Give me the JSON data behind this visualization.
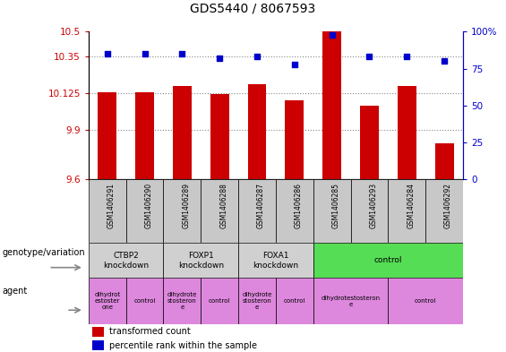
{
  "title": "GDS5440 / 8067593",
  "samples": [
    "GSM1406291",
    "GSM1406290",
    "GSM1406289",
    "GSM1406288",
    "GSM1406287",
    "GSM1406286",
    "GSM1406285",
    "GSM1406293",
    "GSM1406284",
    "GSM1406292"
  ],
  "transformed_count": [
    10.13,
    10.13,
    10.17,
    10.12,
    10.18,
    10.08,
    10.5,
    10.05,
    10.17,
    9.82
  ],
  "percentile_rank": [
    85,
    85,
    85,
    82,
    83,
    78,
    98,
    83,
    83,
    80
  ],
  "ylim_left": [
    9.6,
    10.5
  ],
  "ylim_right": [
    0,
    100
  ],
  "yticks_left": [
    9.6,
    9.9,
    10.125,
    10.35,
    10.5
  ],
  "ytick_labels_left": [
    "9.6",
    "9.9",
    "10.125",
    "10.35",
    "10.5"
  ],
  "yticks_right": [
    0,
    25,
    50,
    75,
    100
  ],
  "ytick_labels_right": [
    "0",
    "25",
    "50",
    "75",
    "100%"
  ],
  "bar_color": "#cc0000",
  "dot_color": "#0000cc",
  "bar_bottom": 9.6,
  "genotype_variation": [
    {
      "label": "CTBP2\nknockdown",
      "start": 0,
      "end": 2,
      "color": "#d0d0d0"
    },
    {
      "label": "FOXP1\nknockdown",
      "start": 2,
      "end": 4,
      "color": "#d0d0d0"
    },
    {
      "label": "FOXA1\nknockdown",
      "start": 4,
      "end": 6,
      "color": "#d0d0d0"
    },
    {
      "label": "control",
      "start": 6,
      "end": 10,
      "color": "#55dd55"
    }
  ],
  "agent": [
    {
      "label": "dihydrot\nestoster\none",
      "start": 0,
      "end": 1,
      "color": "#dd88dd"
    },
    {
      "label": "control",
      "start": 1,
      "end": 2,
      "color": "#dd88dd"
    },
    {
      "label": "dihydrote\nstosteron\ne",
      "start": 2,
      "end": 3,
      "color": "#dd88dd"
    },
    {
      "label": "control",
      "start": 3,
      "end": 4,
      "color": "#dd88dd"
    },
    {
      "label": "dihydrote\nstosteron\ne",
      "start": 4,
      "end": 5,
      "color": "#dd88dd"
    },
    {
      "label": "control",
      "start": 5,
      "end": 6,
      "color": "#dd88dd"
    },
    {
      "label": "dihydrotestosteron\ne",
      "start": 6,
      "end": 8,
      "color": "#dd88dd"
    },
    {
      "label": "control",
      "start": 8,
      "end": 10,
      "color": "#dd88dd"
    }
  ],
  "grid_color": "#888888",
  "title_fontsize": 10,
  "tick_fontsize": 7.5,
  "sample_fontsize": 5.5,
  "cell_fontsize": 6.5,
  "agent_fontsize": 5.0,
  "legend_fontsize": 7,
  "row_label_fontsize": 7
}
